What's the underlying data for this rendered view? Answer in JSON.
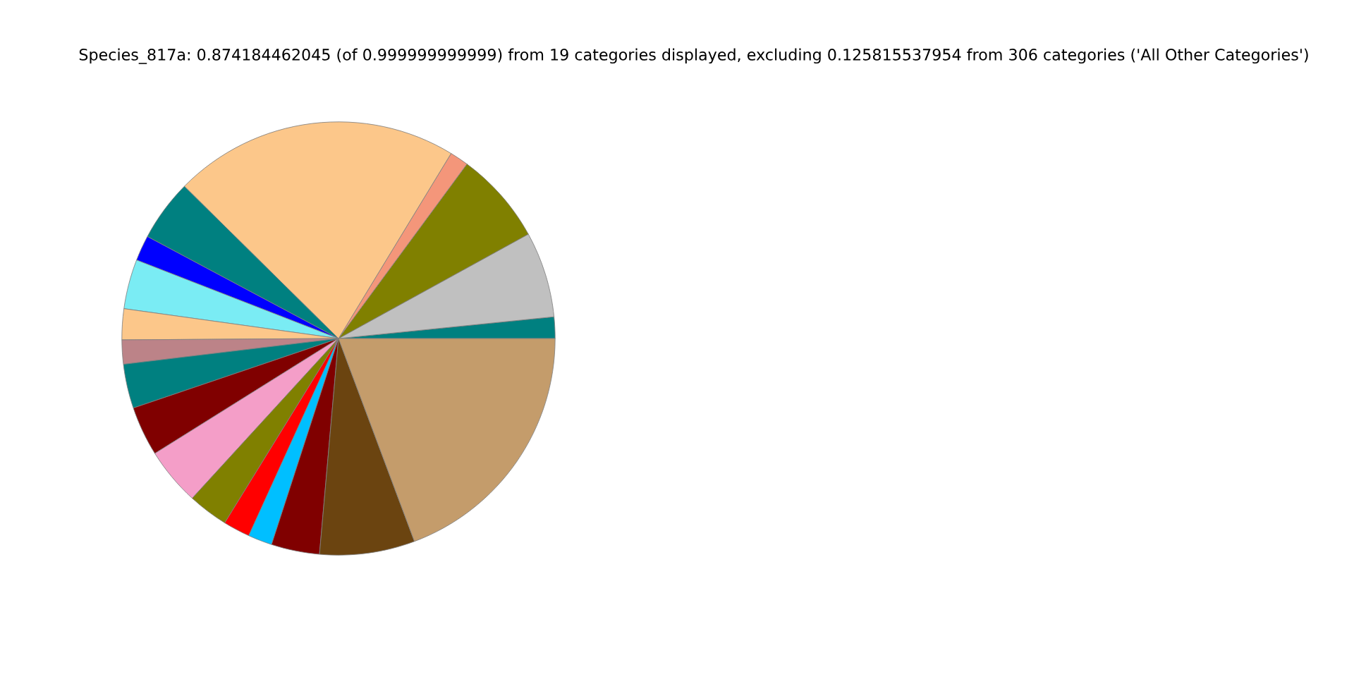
{
  "chart_data": {
    "type": "pie",
    "title": "Species_817a: 0.874184462045 (of 0.999999999999) from 19 categories displayed, excluding 0.125815537954 from 306 categories ('All Other Categories')",
    "categories": [
      null,
      null,
      null,
      null,
      null,
      null,
      null,
      null,
      null,
      null,
      null,
      null,
      null,
      null,
      null,
      null,
      null,
      null,
      null
    ],
    "values": [
      1.6,
      6.4,
      6.9,
      1.4,
      21.3,
      4.6,
      1.9,
      3.7,
      2.3,
      1.8,
      3.3,
      3.7,
      4.3,
      3.0,
      2.0,
      1.8,
      3.6,
      7.1,
      19.3
    ],
    "colors": [
      "#008080",
      "#c0c0c0",
      "#808000",
      "#f4967a",
      "#fcc78a",
      "#008080",
      "#0000ff",
      "#7aecf4",
      "#fcc78a",
      "#bc8388",
      "#008080",
      "#800000",
      "#f49ec8",
      "#808000",
      "#ff0000",
      "#00bfff",
      "#800000",
      "#6b4410",
      "#c49c6b"
    ]
  }
}
